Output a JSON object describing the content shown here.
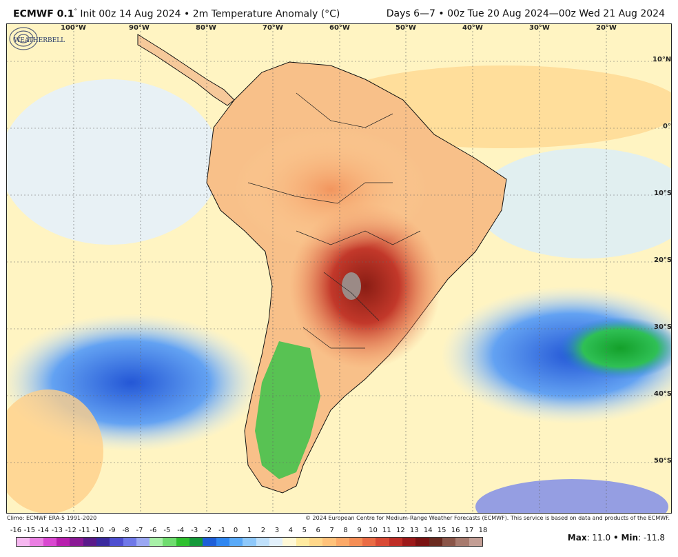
{
  "header": {
    "model": "ECMWF 0.1",
    "degree": "°",
    "init": "Init 00z 14 Aug 2024",
    "bullet": "•",
    "product": "2m Temperature Anomaly (°C)",
    "valid": "Days 6—7 • 00z Tue 20 Aug 2024—00z Wed 21 Aug 2024"
  },
  "map": {
    "lon_labels": [
      "100°W",
      "90°W",
      "80°W",
      "70°W",
      "60°W",
      "50°W",
      "40°W",
      "30°W",
      "20°W"
    ],
    "lat_labels": [
      "10°N",
      "0°",
      "10°S",
      "20°S",
      "30°S",
      "40°S",
      "50°S"
    ],
    "logo": {
      "text": "WEATHERBELL",
      "icon": "weatherbell-logo"
    }
  },
  "credits": {
    "clim": "Climo: ECMWF ERA-5 1991-2020",
    "copyright": "© 2024 European Centre for Medium-Range Weather Forecasts (ECMWF). This service is based on data and products of the ECMWF."
  },
  "colorbar": {
    "labels": [
      "-16",
      "-15",
      "-14",
      "-13",
      "-12",
      "-11",
      "-10",
      "-9",
      "-8",
      "-7",
      "-6",
      "-5",
      "-4",
      "-3",
      "-2",
      "-1",
      "0",
      "1",
      "2",
      "3",
      "4",
      "5",
      "6",
      "7",
      "8",
      "9",
      "10",
      "11",
      "12",
      "13",
      "14",
      "15",
      "16",
      "17",
      "18"
    ],
    "colors": [
      "#f6b8f0",
      "#ea7fe2",
      "#d948d0",
      "#b81fae",
      "#8a1a95",
      "#5a1b8a",
      "#3a2a9e",
      "#4e4fd0",
      "#6f78e8",
      "#9aa7f2",
      "#a8f0a8",
      "#6fdc6f",
      "#2fc02f",
      "#15993a",
      "#1e5fd8",
      "#2f86f0",
      "#5aaaf8",
      "#8ec8fa",
      "#bfe0fb",
      "#e2f0fb",
      "#fff8d6",
      "#ffeaa0",
      "#ffd78a",
      "#ffc27a",
      "#fca968",
      "#f58e56",
      "#ea6c45",
      "#d94a35",
      "#bf2e26",
      "#9c1a1a",
      "#7a1212",
      "#6a2a20",
      "#8a5548",
      "#a77a6e",
      "#c39e95"
    ],
    "max_label": "Max",
    "max_value": "11.0",
    "min_label": "Min",
    "min_value": "-11.8",
    "sep": "•"
  }
}
